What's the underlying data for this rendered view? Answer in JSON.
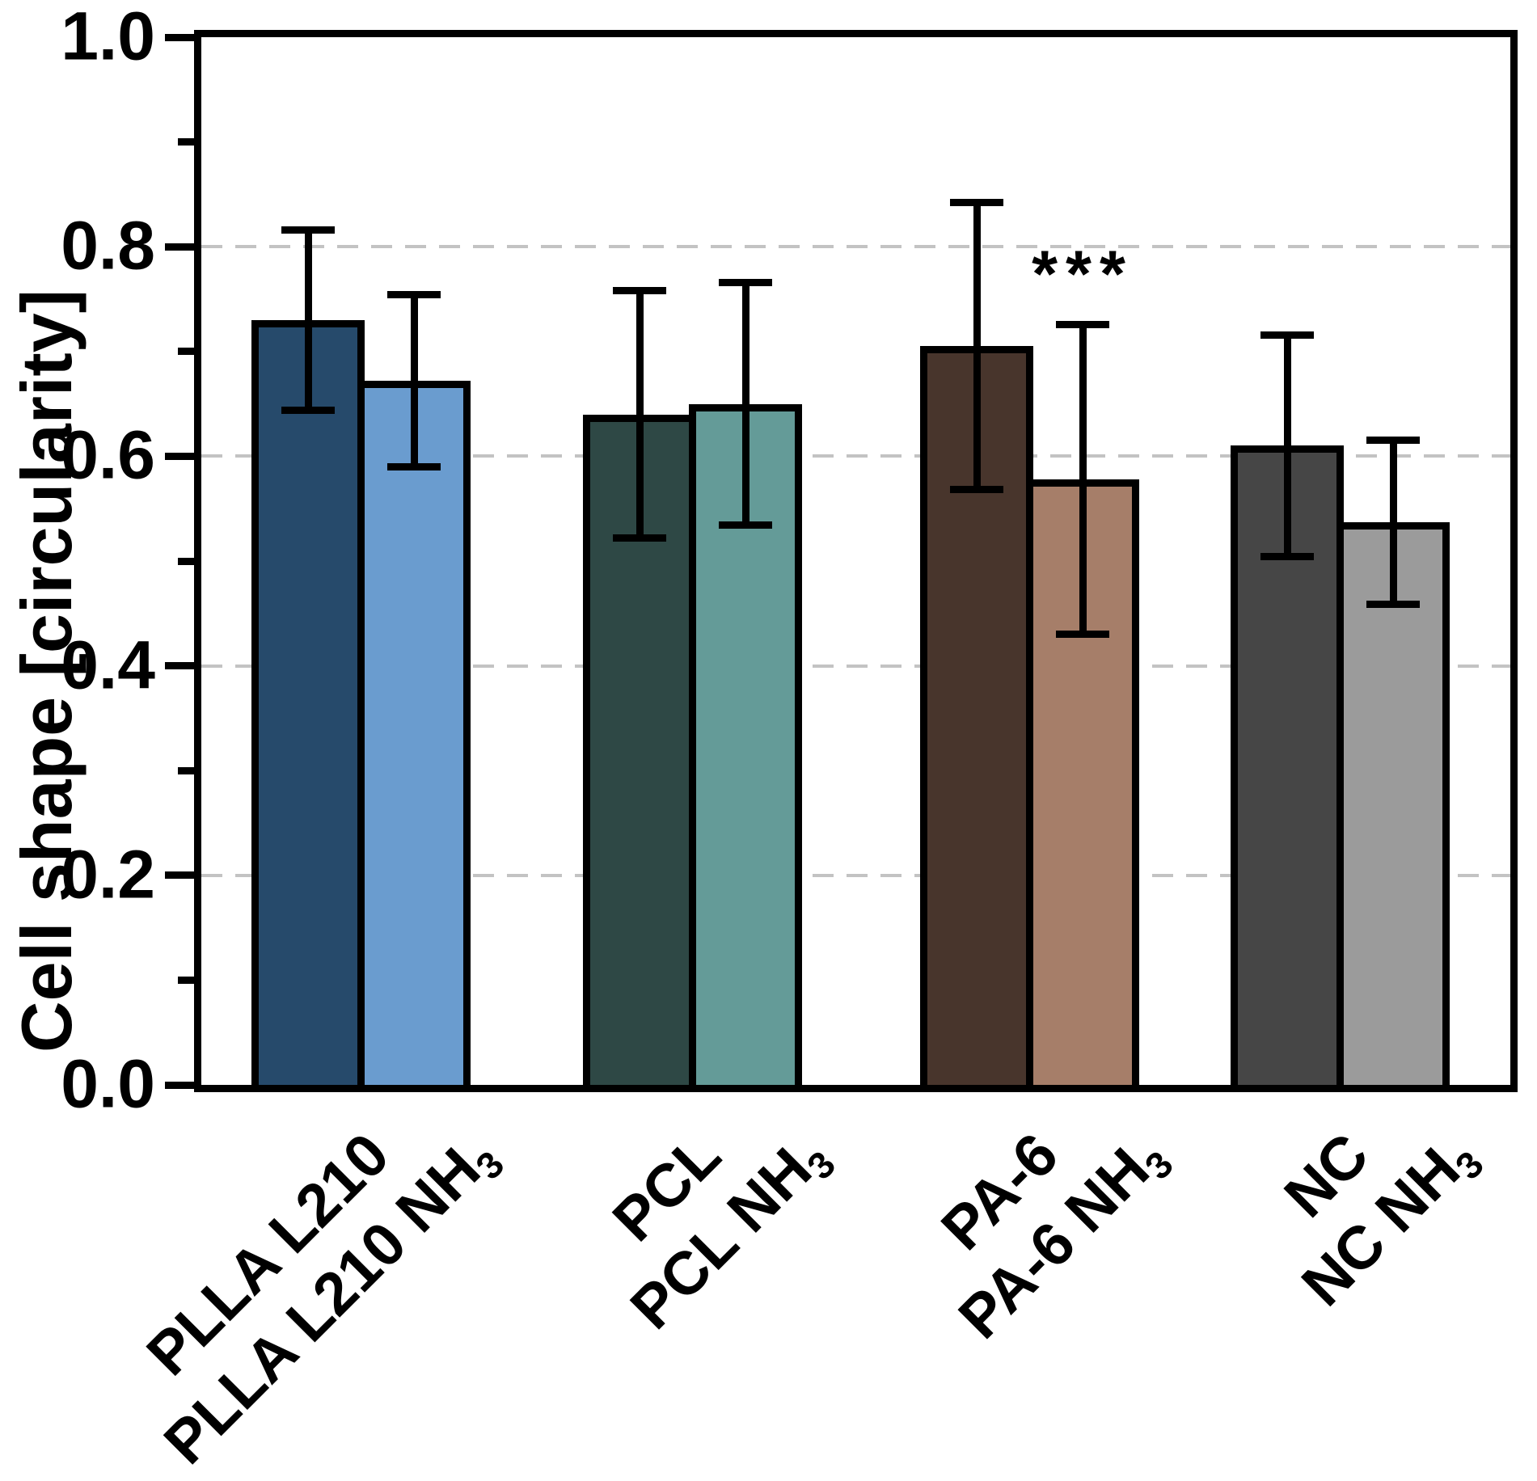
{
  "chart_data": {
    "type": "bar",
    "title": "",
    "xlabel": "",
    "ylabel": "Cell shape [circularity]",
    "ylim": [
      0.0,
      1.0
    ],
    "ytick_values": [
      0.0,
      0.2,
      0.4,
      0.6,
      0.8,
      1.0
    ],
    "ytick_labels": [
      "0.0",
      "0.2",
      "0.4",
      "0.6",
      "0.8",
      "1.0"
    ],
    "minor_tick_values": [
      0.1,
      0.3,
      0.5,
      0.7,
      0.9
    ],
    "gridline_values": [
      0.2,
      0.4,
      0.6,
      0.8
    ],
    "grid_style": "dashed-horizontal",
    "grid_color": "#C3C3C3",
    "axis_color": "#000000",
    "error_bar_color": "#000000",
    "legend": null,
    "groups": [
      {
        "name": "PLLA L210",
        "bars": [
          {
            "label": "PLLA L210",
            "label_sub": "",
            "value": 0.73,
            "error": 0.086,
            "color": "#264A6B",
            "annotation": ""
          },
          {
            "label": "PLLA L210 NH",
            "label_sub": "3",
            "value": 0.672,
            "error": 0.082,
            "color": "#6A9CCF",
            "annotation": ""
          }
        ]
      },
      {
        "name": "PCL",
        "bars": [
          {
            "label": "PCL",
            "label_sub": "",
            "value": 0.64,
            "error": 0.118,
            "color": "#2E4845",
            "annotation": ""
          },
          {
            "label": "PCL NH",
            "label_sub": "3",
            "value": 0.65,
            "error": 0.116,
            "color": "#649B98",
            "annotation": ""
          }
        ]
      },
      {
        "name": "PA-6",
        "bars": [
          {
            "label": "PA-6",
            "label_sub": "",
            "value": 0.705,
            "error": 0.137,
            "color": "#48352C",
            "annotation": ""
          },
          {
            "label": "PA-6 NH",
            "label_sub": "3",
            "value": 0.578,
            "error": 0.148,
            "color": "#A67E69",
            "annotation": "***"
          }
        ]
      },
      {
        "name": "NC",
        "bars": [
          {
            "label": "NC",
            "label_sub": "",
            "value": 0.61,
            "error": 0.106,
            "color": "#464646",
            "annotation": ""
          },
          {
            "label": "NC NH",
            "label_sub": "3",
            "value": 0.537,
            "error": 0.078,
            "color": "#9B9B9B",
            "annotation": ""
          }
        ]
      }
    ]
  }
}
